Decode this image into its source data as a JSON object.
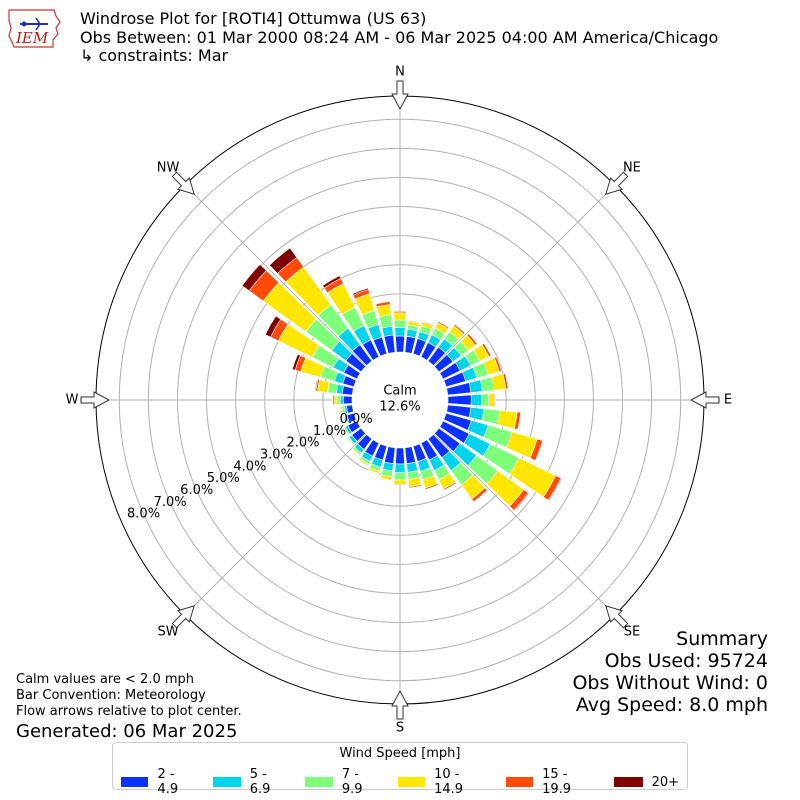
{
  "header": {
    "title": "Windrose Plot for [ROTI4] Ottumwa (US 63)",
    "obs_between": "Obs Between: 01 Mar 2000 08:24 AM - 06 Mar 2025 04:00 AM America/Chicago",
    "constraints": "↳ constraints: Mar"
  },
  "logo": {
    "text": "IEM"
  },
  "notes": {
    "calm": "Calm values are < 2.0 mph",
    "bar_convention": "Bar Convention: Meteorology",
    "flow": "Flow arrows relative to plot center.",
    "generated": "Generated: 06 Mar 2025"
  },
  "summary": {
    "title": "Summary",
    "obs_used": "Obs Used: 95724",
    "obs_without_wind": "Obs Without Wind: 0",
    "avg_speed": "Avg Speed: 8.0 mph"
  },
  "chart_data": {
    "type": "windrose",
    "directions_deg": [
      0,
      10,
      20,
      30,
      40,
      50,
      60,
      70,
      80,
      90,
      100,
      110,
      120,
      130,
      140,
      150,
      160,
      170,
      180,
      190,
      200,
      210,
      220,
      230,
      240,
      250,
      260,
      270,
      280,
      290,
      300,
      310,
      320,
      330,
      340,
      350
    ],
    "compass_labels": [
      "N",
      "NE",
      "E",
      "SE",
      "S",
      "SW",
      "W",
      "NW"
    ],
    "calm": {
      "label": "Calm",
      "value": "12.6%",
      "percent": 12.6
    },
    "radial_ticks": [
      "0.0%",
      "1.0%",
      "2.0%",
      "3.0%",
      "4.0%",
      "5.0%",
      "6.0%",
      "7.0%",
      "8.0%"
    ],
    "rmax_percent": 8.8,
    "bins": [
      {
        "label": "2 - 4.9",
        "color": "#0b31ff"
      },
      {
        "label": "5 - 6.9",
        "color": "#00d4ec"
      },
      {
        "label": "7 - 9.9",
        "color": "#7dff7a"
      },
      {
        "label": "10 - 14.9",
        "color": "#ffe600"
      },
      {
        "label": "15 - 19.9",
        "color": "#ff4a0a"
      },
      {
        "label": "20+",
        "color": "#800000"
      }
    ],
    "legend_title": "Wind Speed [mph]",
    "freq": [
      [
        0.55,
        0.3,
        0.25,
        0.25,
        0.05,
        0.0
      ],
      [
        0.55,
        0.25,
        0.15,
        0.12,
        0.03,
        0.0
      ],
      [
        0.55,
        0.25,
        0.2,
        0.13,
        0.03,
        0.0
      ],
      [
        0.55,
        0.3,
        0.25,
        0.2,
        0.05,
        0.0
      ],
      [
        0.6,
        0.35,
        0.3,
        0.25,
        0.06,
        0.0
      ],
      [
        0.6,
        0.35,
        0.3,
        0.3,
        0.08,
        0.0
      ],
      [
        0.65,
        0.4,
        0.35,
        0.35,
        0.08,
        0.0
      ],
      [
        0.7,
        0.4,
        0.4,
        0.4,
        0.08,
        0.0
      ],
      [
        0.8,
        0.4,
        0.4,
        0.4,
        0.08,
        0.0
      ],
      [
        0.8,
        0.35,
        0.25,
        0.2,
        0.03,
        0.0
      ],
      [
        0.8,
        0.45,
        0.55,
        0.6,
        0.12,
        0.0
      ],
      [
        0.9,
        0.6,
        0.85,
        0.9,
        0.2,
        0.0
      ],
      [
        1.0,
        0.8,
        1.1,
        1.4,
        0.2,
        0.03
      ],
      [
        0.9,
        0.7,
        0.9,
        1.1,
        0.2,
        0.03
      ],
      [
        0.8,
        0.55,
        0.6,
        0.6,
        0.12,
        0.0
      ],
      [
        0.65,
        0.4,
        0.35,
        0.35,
        0.05,
        0.0
      ],
      [
        0.55,
        0.35,
        0.3,
        0.3,
        0.05,
        0.0
      ],
      [
        0.55,
        0.3,
        0.25,
        0.25,
        0.04,
        0.0
      ],
      [
        0.55,
        0.3,
        0.25,
        0.15,
        0.03,
        0.0
      ],
      [
        0.55,
        0.25,
        0.2,
        0.12,
        0.02,
        0.0
      ],
      [
        0.5,
        0.25,
        0.15,
        0.08,
        0.02,
        0.0
      ],
      [
        0.5,
        0.2,
        0.1,
        0.06,
        0.01,
        0.0
      ],
      [
        0.45,
        0.15,
        0.08,
        0.04,
        0.01,
        0.0
      ],
      [
        0.4,
        0.12,
        0.05,
        0.03,
        0.01,
        0.0
      ],
      [
        0.35,
        0.1,
        0.05,
        0.03,
        0.01,
        0.0
      ],
      [
        0.25,
        0.06,
        0.04,
        0.03,
        0.01,
        0.0
      ],
      [
        0.2,
        0.08,
        0.08,
        0.06,
        0.02,
        0.0
      ],
      [
        0.3,
        0.1,
        0.12,
        0.1,
        0.05,
        0.02
      ],
      [
        0.35,
        0.2,
        0.3,
        0.35,
        0.06,
        0.03
      ],
      [
        0.4,
        0.3,
        0.5,
        0.7,
        0.2,
        0.1
      ],
      [
        0.5,
        0.4,
        0.8,
        1.3,
        0.3,
        0.2
      ],
      [
        0.65,
        0.6,
        1.1,
        1.8,
        0.6,
        0.3
      ],
      [
        0.7,
        0.7,
        1.0,
        1.6,
        0.4,
        0.4
      ],
      [
        0.65,
        0.55,
        0.7,
        0.9,
        0.2,
        0.1
      ],
      [
        0.6,
        0.45,
        0.5,
        0.6,
        0.15,
        0.05
      ],
      [
        0.6,
        0.3,
        0.4,
        0.35,
        0.1,
        0.0
      ]
    ]
  }
}
